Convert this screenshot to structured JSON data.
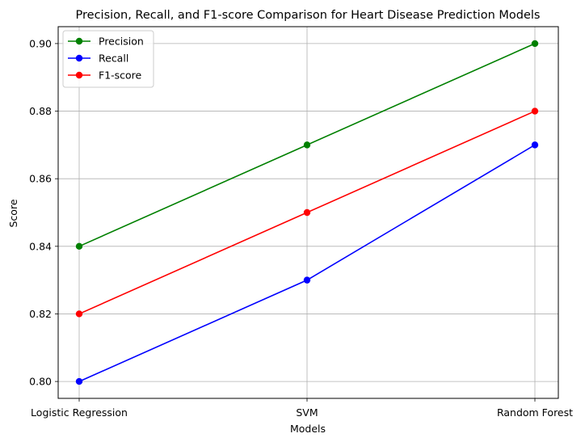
{
  "chart_data": {
    "type": "line",
    "title": "Precision, Recall, and F1-score Comparison for Heart Disease Prediction Models",
    "xlabel": "Models",
    "ylabel": "Score",
    "categories": [
      "Logistic Regression",
      "SVM",
      "Random Forest"
    ],
    "ylim": [
      0.795,
      0.905
    ],
    "yticks": [
      "0.80",
      "0.82",
      "0.84",
      "0.86",
      "0.88",
      "0.90"
    ],
    "ytick_values": [
      0.8,
      0.82,
      0.84,
      0.86,
      0.88,
      0.9
    ],
    "grid": true,
    "legend_position": "top-left",
    "series": [
      {
        "name": "Precision",
        "color": "#008000",
        "marker": "circle",
        "values": [
          0.84,
          0.87,
          0.9
        ]
      },
      {
        "name": "Recall",
        "color": "#0000ff",
        "marker": "circle",
        "values": [
          0.8,
          0.83,
          0.87
        ]
      },
      {
        "name": "F1-score",
        "color": "#ff0000",
        "marker": "circle",
        "values": [
          0.82,
          0.85,
          0.88
        ]
      }
    ]
  }
}
